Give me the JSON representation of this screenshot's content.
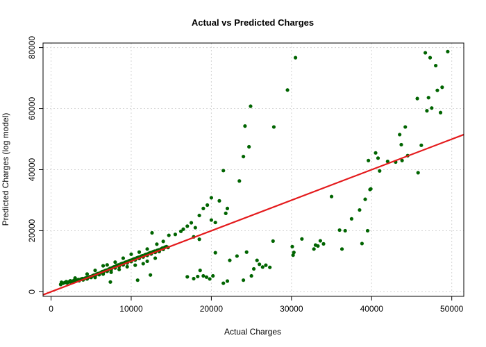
{
  "chart_data": {
    "type": "scatter",
    "title": "Actual vs Predicted Charges",
    "xlabel": "Actual Charges",
    "ylabel": "Predicted Charges (log model)",
    "xlim": [
      -1000,
      51500
    ],
    "ylim": [
      -1500,
      81500
    ],
    "x_ticks": [
      0,
      10000,
      20000,
      30000,
      40000,
      50000
    ],
    "y_ticks": [
      0,
      20000,
      40000,
      60000,
      80000
    ],
    "x_tick_labels": [
      "0",
      "10000",
      "20000",
      "30000",
      "40000",
      "50000"
    ],
    "y_tick_labels": [
      "0",
      "20000",
      "40000",
      "60000",
      "80000"
    ],
    "grid": true,
    "point_color": "#006400",
    "line_color": "#e41a1c",
    "reference_line": {
      "slope": 1,
      "intercept": 0
    },
    "points": [
      [
        1200,
        2400
      ],
      [
        1300,
        3100
      ],
      [
        1500,
        2800
      ],
      [
        1700,
        3000
      ],
      [
        1900,
        3300
      ],
      [
        2000,
        2900
      ],
      [
        2200,
        3200
      ],
      [
        2400,
        3600
      ],
      [
        2500,
        3100
      ],
      [
        2700,
        3500
      ],
      [
        2900,
        3800
      ],
      [
        3000,
        3400
      ],
      [
        3200,
        3700
      ],
      [
        3400,
        4000
      ],
      [
        3500,
        3600
      ],
      [
        3700,
        4100
      ],
      [
        3900,
        4300
      ],
      [
        4000,
        3900
      ],
      [
        4200,
        4400
      ],
      [
        4400,
        4600
      ],
      [
        4500,
        4200
      ],
      [
        4700,
        4800
      ],
      [
        4900,
        5000
      ],
      [
        5000,
        4700
      ],
      [
        5200,
        5300
      ],
      [
        5400,
        5500
      ],
      [
        5500,
        5100
      ],
      [
        5700,
        5800
      ],
      [
        5900,
        6000
      ],
      [
        6000,
        5600
      ],
      [
        6200,
        6300
      ],
      [
        6400,
        6600
      ],
      [
        6500,
        6100
      ],
      [
        6700,
        6900
      ],
      [
        6900,
        7100
      ],
      [
        7000,
        6700
      ],
      [
        7200,
        7400
      ],
      [
        7400,
        7700
      ],
      [
        7500,
        7200
      ],
      [
        7700,
        8000
      ],
      [
        7900,
        8200
      ],
      [
        8000,
        7800
      ],
      [
        8200,
        8600
      ],
      [
        8400,
        8800
      ],
      [
        8500,
        8300
      ],
      [
        8700,
        9100
      ],
      [
        8900,
        9300
      ],
      [
        9000,
        8800
      ],
      [
        9200,
        9600
      ],
      [
        9400,
        9800
      ],
      [
        9500,
        9400
      ],
      [
        9700,
        10100
      ],
      [
        9900,
        10300
      ],
      [
        10000,
        9900
      ],
      [
        10200,
        10600
      ],
      [
        10400,
        10800
      ],
      [
        10500,
        10400
      ],
      [
        10700,
        11100
      ],
      [
        10900,
        11300
      ],
      [
        11000,
        10900
      ],
      [
        11200,
        11600
      ],
      [
        11400,
        11800
      ],
      [
        11500,
        11400
      ],
      [
        11700,
        12100
      ],
      [
        11900,
        12300
      ],
      [
        12000,
        11900
      ],
      [
        12200,
        12600
      ],
      [
        12400,
        12800
      ],
      [
        12500,
        12400
      ],
      [
        12700,
        13100
      ],
      [
        12900,
        13300
      ],
      [
        13000,
        12900
      ],
      [
        13200,
        13500
      ],
      [
        13400,
        13700
      ],
      [
        13500,
        13200
      ],
      [
        13700,
        14000
      ],
      [
        13900,
        14300
      ],
      [
        14000,
        13900
      ],
      [
        14200,
        14600
      ],
      [
        14400,
        14800
      ],
      [
        14600,
        14500
      ],
      [
        3000,
        4500
      ],
      [
        4500,
        5800
      ],
      [
        5500,
        7000
      ],
      [
        6500,
        8500
      ],
      [
        7000,
        8800
      ],
      [
        8000,
        9700
      ],
      [
        9000,
        11000
      ],
      [
        10000,
        12300
      ],
      [
        11000,
        13000
      ],
      [
        12000,
        14000
      ],
      [
        12600,
        19300
      ],
      [
        13200,
        15600
      ],
      [
        14000,
        16500
      ],
      [
        14700,
        18500
      ],
      [
        15500,
        18800
      ],
      [
        13000,
        11000
      ],
      [
        12000,
        10000
      ],
      [
        11500,
        9200
      ],
      [
        10500,
        8700
      ],
      [
        9500,
        8200
      ],
      [
        8500,
        7300
      ],
      [
        7500,
        6400
      ],
      [
        6500,
        5800
      ],
      [
        5500,
        4700
      ],
      [
        7400,
        3200
      ],
      [
        10800,
        3800
      ],
      [
        12400,
        5500
      ],
      [
        16500,
        20500
      ],
      [
        17000,
        21500
      ],
      [
        17500,
        22600
      ],
      [
        18000,
        21000
      ],
      [
        18500,
        25000
      ],
      [
        19000,
        27300
      ],
      [
        19500,
        28400
      ],
      [
        20000,
        30800
      ],
      [
        17800,
        18000
      ],
      [
        16200,
        19800
      ],
      [
        18500,
        17200
      ],
      [
        20500,
        22700
      ],
      [
        21000,
        29800
      ],
      [
        21500,
        39700
      ],
      [
        22000,
        27300
      ],
      [
        23500,
        36300
      ],
      [
        24000,
        44300
      ],
      [
        24200,
        54300
      ],
      [
        24700,
        47500
      ],
      [
        24900,
        60800
      ],
      [
        27800,
        54000
      ],
      [
        29500,
        66100
      ],
      [
        30500,
        76700
      ],
      [
        20000,
        23500
      ],
      [
        21800,
        25700
      ],
      [
        17000,
        4900
      ],
      [
        17800,
        4300
      ],
      [
        18300,
        5000
      ],
      [
        18600,
        7000
      ],
      [
        19000,
        5200
      ],
      [
        19400,
        4800
      ],
      [
        19800,
        4200
      ],
      [
        20200,
        5200
      ],
      [
        20500,
        12800
      ],
      [
        21500,
        2800
      ],
      [
        22000,
        3500
      ],
      [
        22300,
        10300
      ],
      [
        23200,
        11700
      ],
      [
        24000,
        3800
      ],
      [
        24400,
        13000
      ],
      [
        25000,
        5200
      ],
      [
        25300,
        7500
      ],
      [
        25700,
        10300
      ],
      [
        26000,
        9000
      ],
      [
        26400,
        8100
      ],
      [
        26800,
        8700
      ],
      [
        27300,
        8000
      ],
      [
        27700,
        16600
      ],
      [
        30100,
        14800
      ],
      [
        30200,
        12000
      ],
      [
        30300,
        12900
      ],
      [
        31300,
        17300
      ],
      [
        32800,
        14000
      ],
      [
        33300,
        15000
      ],
      [
        33600,
        16700
      ],
      [
        34000,
        15700
      ],
      [
        33000,
        15300
      ],
      [
        35000,
        31200
      ],
      [
        36000,
        20200
      ],
      [
        36300,
        14000
      ],
      [
        36700,
        20000
      ],
      [
        37500,
        23900
      ],
      [
        38500,
        26800
      ],
      [
        38800,
        15800
      ],
      [
        39200,
        30300
      ],
      [
        39500,
        20000
      ],
      [
        39600,
        43000
      ],
      [
        39800,
        33500
      ],
      [
        39900,
        33700
      ],
      [
        40500,
        45500
      ],
      [
        40800,
        43800
      ],
      [
        41000,
        39600
      ],
      [
        42000,
        42700
      ],
      [
        43000,
        42500
      ],
      [
        43500,
        51500
      ],
      [
        43700,
        48200
      ],
      [
        43800,
        43000
      ],
      [
        44200,
        54000
      ],
      [
        44500,
        44600
      ],
      [
        45700,
        63300
      ],
      [
        45800,
        39000
      ],
      [
        46200,
        48000
      ],
      [
        46700,
        78300
      ],
      [
        46900,
        59300
      ],
      [
        47300,
        76700
      ],
      [
        47100,
        63600
      ],
      [
        47500,
        60200
      ],
      [
        48000,
        74100
      ],
      [
        48600,
        58700
      ],
      [
        48800,
        67000
      ],
      [
        49500,
        78700
      ],
      [
        48200,
        66000
      ]
    ]
  }
}
